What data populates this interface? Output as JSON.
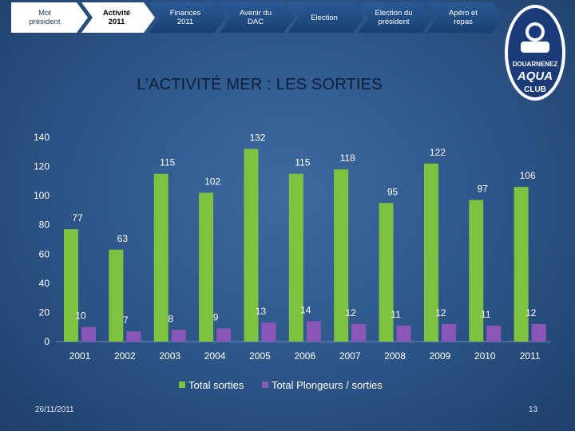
{
  "nav": {
    "items": [
      {
        "label": "Mot\nprésident"
      },
      {
        "label": "Activité\n2011"
      },
      {
        "label": "Finances\n2011"
      },
      {
        "label": "Avenir du\nDAC"
      },
      {
        "label": "Election"
      },
      {
        "label": "Election du\nprésident"
      },
      {
        "label": "Apéro et\nrepas"
      }
    ],
    "active_index": 1
  },
  "logo": {
    "line1": "DOUARNENEZ",
    "line2": "AQUA",
    "line3": "CLUB"
  },
  "title": "L’ACTIVITÉ MER : LES SORTIES",
  "chart_data": {
    "type": "bar",
    "categories": [
      "2001",
      "2002",
      "2003",
      "2004",
      "2005",
      "2006",
      "2007",
      "2008",
      "2009",
      "2010",
      "2011"
    ],
    "series": [
      {
        "name": "Total sorties",
        "color": "#7fc241",
        "values": [
          77,
          63,
          115,
          102,
          132,
          115,
          118,
          95,
          122,
          97,
          106
        ]
      },
      {
        "name": "Total Plongeurs / sorties",
        "color": "#8a57b8",
        "values": [
          10,
          7,
          8,
          9,
          13,
          14,
          12,
          11,
          12,
          11,
          12
        ]
      }
    ],
    "ylim": [
      0,
      140
    ],
    "yticks": [
      "0",
      "20",
      "40",
      "60",
      "80",
      "100",
      "120",
      "140"
    ],
    "legend_position": "bottom",
    "grid": false
  },
  "footer": {
    "date": "26/11/2011",
    "page": "13"
  }
}
